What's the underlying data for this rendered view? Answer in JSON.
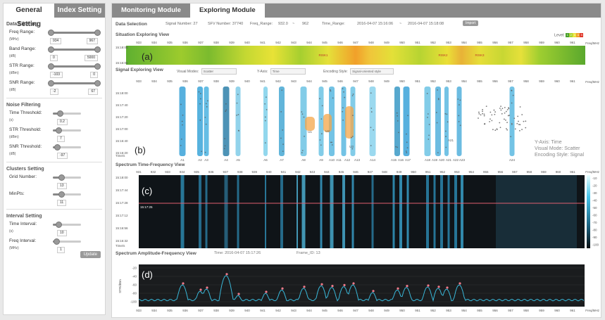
{
  "left_tabs": [
    "General Setting",
    "Index Setting"
  ],
  "left_sections": [
    {
      "title": "Data Filtering",
      "controls": [
        {
          "label": "Freq Range:",
          "unit": "(MHz)",
          "type": "range",
          "min": "934",
          "max": "967",
          "lo": 0.02,
          "hi": 0.98
        },
        {
          "label": "Band Range:",
          "unit": "(dB)",
          "type": "range",
          "min": "0",
          "max": "5000",
          "lo": 0.02,
          "hi": 0.98
        },
        {
          "label": "STR Range:",
          "unit": "(dBm)",
          "type": "range",
          "min": "-103",
          "max": "0",
          "lo": 0.02,
          "hi": 0.98
        },
        {
          "label": "SNR Range:",
          "unit": "(dB)",
          "type": "range",
          "min": "-2",
          "max": "67",
          "lo": 0.02,
          "hi": 0.98
        }
      ]
    },
    {
      "title": "Noise Filtering",
      "controls": [
        {
          "label": "Time Threshold:",
          "unit": "(s)",
          "type": "single",
          "value": "0.2",
          "pos": 0.25
        },
        {
          "label": "STR Threshold:",
          "unit": "(dBm)",
          "type": "single",
          "value": "7",
          "pos": 0.2
        },
        {
          "label": "SNR Threshold:",
          "unit": "(dB)",
          "type": "single",
          "value": "-97",
          "pos": 0.15
        }
      ]
    },
    {
      "title": "Clusters Setting",
      "controls": [
        {
          "label": "Grid Number:",
          "unit": "",
          "type": "single",
          "value": "13",
          "pos": 0.3
        },
        {
          "label": "MinPts:",
          "unit": "",
          "type": "single",
          "value": "11",
          "pos": 0.3
        }
      ]
    },
    {
      "title": "Interval Setting",
      "controls": [
        {
          "label": "Time Interval:",
          "unit": "(s)",
          "type": "single",
          "value": "10",
          "pos": 0.2
        },
        {
          "label": "Freq Interval:",
          "unit": "(MHz)",
          "type": "single",
          "value": "1",
          "pos": 0.12
        }
      ]
    }
  ],
  "update_label": "Update",
  "right_tabs": [
    "Monitoring Module",
    "Exploring Module"
  ],
  "data_selection": {
    "title": "Data Selection",
    "signal_number": "Signal Number: 27",
    "sfv_number": "SFV Number: 37740",
    "freq_range_label": "Freq_Range:",
    "freq_lo": "932.0",
    "freq_sep": "~",
    "freq_hi": "962",
    "time_range_label": "Time_Range:",
    "time_lo": "2016-04-07 15:16:06",
    "time_sep": "~",
    "time_hi": "2016-04-07 15:18:08",
    "import_label": "Import"
  },
  "situation": {
    "title": "Situation Exploring View",
    "level_label": "Level:",
    "level_colors": [
      "#4aa02c",
      "#a6d32f",
      "#e7e23a",
      "#f2a02a",
      "#e0392a"
    ],
    "level_numbers": [
      "1",
      "2",
      "3",
      "4",
      "5"
    ],
    "time_top": "15:18:08",
    "time_bottom": "15:16:06",
    "panel_label": "(a)",
    "risks": [
      "RISK1",
      "RISK2",
      "RISK3"
    ],
    "unit": "Freq/MHz"
  },
  "freq_ticks": [
    "933",
    "934",
    "935",
    "936",
    "937",
    "938",
    "939",
    "940",
    "941",
    "942",
    "943",
    "944",
    "945",
    "946",
    "947",
    "948",
    "949",
    "950",
    "951",
    "952",
    "953",
    "954",
    "955",
    "956",
    "957",
    "958",
    "959",
    "960",
    "961"
  ],
  "signal": {
    "title": "Signal Exploring View",
    "visual_modes_label": "Visual Modes:",
    "visual_modes_value": "Scatter",
    "yaxis_label": "Y-Axis:",
    "yaxis_value": "Time",
    "encoding_label": "Encoding Style:",
    "encoding_value": "Signal-oriented style",
    "times": [
      "15:18:00",
      "15:17:40",
      "15:17:20",
      "15:17:00",
      "15:16:40",
      "15:16:20"
    ],
    "time_axis": "Time/s",
    "panel_label": "(b)",
    "note_lines": [
      "Y-Axis: Time",
      "Visual Mode: Scatter",
      "Encoding Style: Signal"
    ],
    "unit": "Freq/MHz",
    "band_labels": [
      "A1",
      "A2",
      "A3",
      "A4",
      "A5",
      "A6",
      "A7",
      "A8",
      "A9",
      "A10",
      "A11",
      "A12",
      "A13",
      "A14",
      "A15",
      "A16",
      "A17",
      "A18",
      "A19",
      "A20",
      "A21",
      "A22",
      "A23",
      "A24"
    ],
    "u_labels": [
      "U1",
      "U2",
      "U3"
    ],
    "a21_label": "A21"
  },
  "spectrum_tf": {
    "title": "Spectrum Time-Frequency View",
    "times": [
      "15:18:00",
      "15:17:44",
      "15:17:28",
      "15:17:12",
      "15:16:56",
      "15:16:32"
    ],
    "marker_time": "15:17:25",
    "time_axis": "Time/s",
    "panel_label": "(c)",
    "colorbar_ticks": [
      "-10",
      "-20",
      "-30",
      "-40",
      "-50",
      "-60",
      "-70",
      "-80",
      "-90",
      "-100"
    ],
    "ticks": [
      "931",
      "932",
      "933",
      "934",
      "935",
      "936",
      "937",
      "938",
      "939",
      "940",
      "941",
      "942",
      "943",
      "944",
      "945",
      "946",
      "947",
      "948",
      "949",
      "950",
      "951",
      "952",
      "953",
      "954",
      "955",
      "956",
      "957",
      "958",
      "959",
      "960",
      "961"
    ],
    "unit": "Freq/MHz"
  },
  "spectrum_af": {
    "title": "Spectrum Amplitude-Frequency View",
    "time_text": "Time: 2016-04-07 15:17:26",
    "frame_text": "Frame_ID: 13",
    "yticks": [
      "-20",
      "-40",
      "-60",
      "-80",
      "-100"
    ],
    "ylabel": "STR/dBm",
    "panel_label": "(d)",
    "unit": "Freq/MHz",
    "ticks": [
      "933",
      "934",
      "935",
      "936",
      "937",
      "938",
      "939",
      "940",
      "941",
      "942",
      "943",
      "944",
      "945",
      "946",
      "947",
      "948",
      "949",
      "950",
      "951",
      "952",
      "953",
      "954",
      "955",
      "956",
      "957",
      "958",
      "959",
      "960",
      "961"
    ]
  }
}
